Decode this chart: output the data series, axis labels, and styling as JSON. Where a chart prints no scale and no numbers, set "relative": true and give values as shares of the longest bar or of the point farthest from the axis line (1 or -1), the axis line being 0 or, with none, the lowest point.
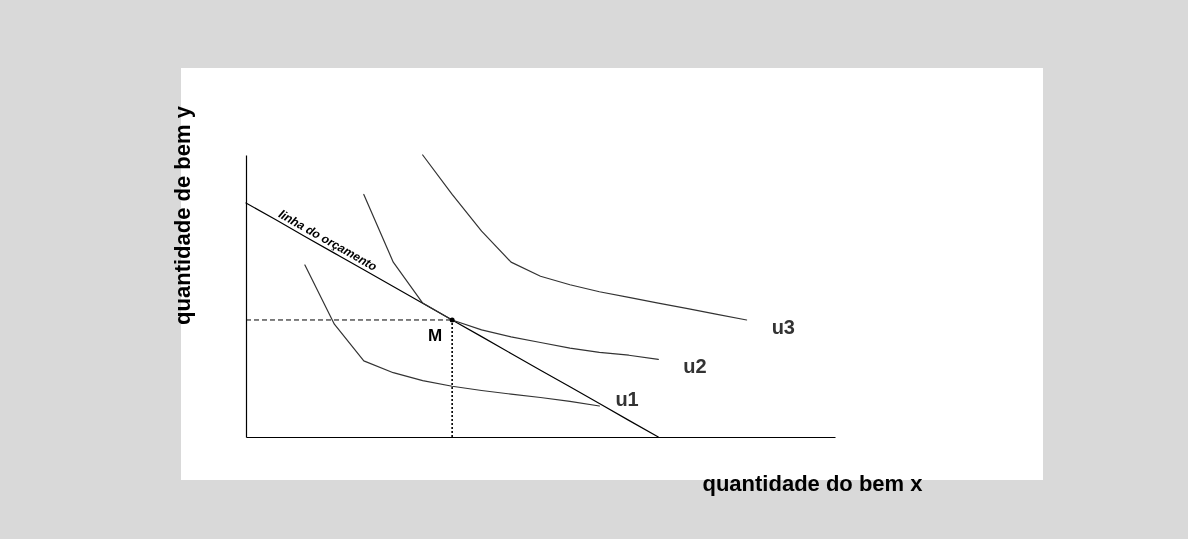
{
  "chart_data": {
    "type": "line",
    "relative": true,
    "xlabel": "quantidade do bem x",
    "ylabel": "quantidade de bem y",
    "line_style": "solid",
    "categories": [
      null,
      null,
      null,
      null,
      null,
      null,
      null,
      null,
      null,
      null,
      null,
      null,
      null,
      null,
      null,
      null,
      null,
      null,
      null,
      null,
      null
    ],
    "series": [
      {
        "name": "linha do orçamento",
        "color": "#000000",
        "values": [
          0.83,
          0.771,
          0.711,
          0.652,
          0.593,
          0.534,
          0.474,
          0.415,
          0.356,
          0.296,
          0.237,
          0.178,
          0.119,
          0.059,
          0,
          null,
          null,
          null,
          null,
          null,
          null
        ]
      },
      {
        "name": "u1",
        "color": "#333333",
        "values": [
          null,
          null,
          0.61,
          0.4,
          0.27,
          0.228,
          0.2,
          0.18,
          0.165,
          0.152,
          0.14,
          0.126,
          0.11,
          null,
          null,
          null,
          null,
          null,
          null,
          null,
          null
        ]
      },
      {
        "name": "u2",
        "color": "#333333",
        "values": [
          null,
          null,
          null,
          null,
          0.86,
          0.62,
          0.475,
          0.415,
          0.38,
          0.355,
          0.335,
          0.315,
          0.3,
          0.29,
          0.275,
          null,
          null,
          null,
          null,
          null,
          null
        ]
      },
      {
        "name": "u3",
        "color": "#333333",
        "values": [
          null,
          null,
          null,
          null,
          null,
          null,
          1,
          0.86,
          0.73,
          0.62,
          0.57,
          0.54,
          0.515,
          0.495,
          0.475,
          0.455,
          0.435,
          0.415,
          null,
          null,
          null
        ]
      }
    ],
    "ref_lines": [
      {
        "axis": "y",
        "value": 0.415,
        "line_style": "dashed",
        "color": "#000000"
      }
    ],
    "annotations": [
      "M"
    ]
  }
}
